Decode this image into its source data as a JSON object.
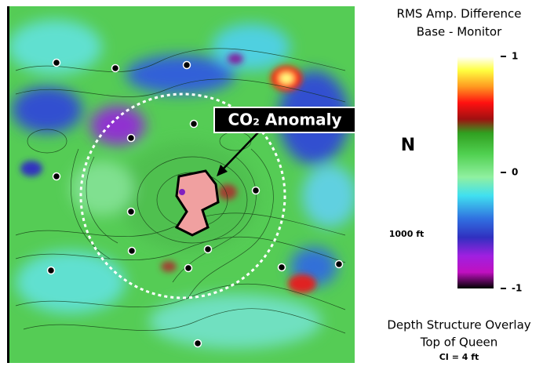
{
  "colorbar": {
    "title_lines": [
      "RMS Amp. Difference",
      "Base - Monitor"
    ],
    "lim": [
      -1,
      1
    ],
    "ticks": [
      1,
      0,
      -1
    ]
  },
  "map": {
    "annotation": "CO₂ Anomaly",
    "north": "N",
    "scale": "1000 ft"
  },
  "footer": {
    "lines": [
      "Depth Structure Overlay",
      "Top of Queen"
    ],
    "note": "CI = 4 ft"
  }
}
